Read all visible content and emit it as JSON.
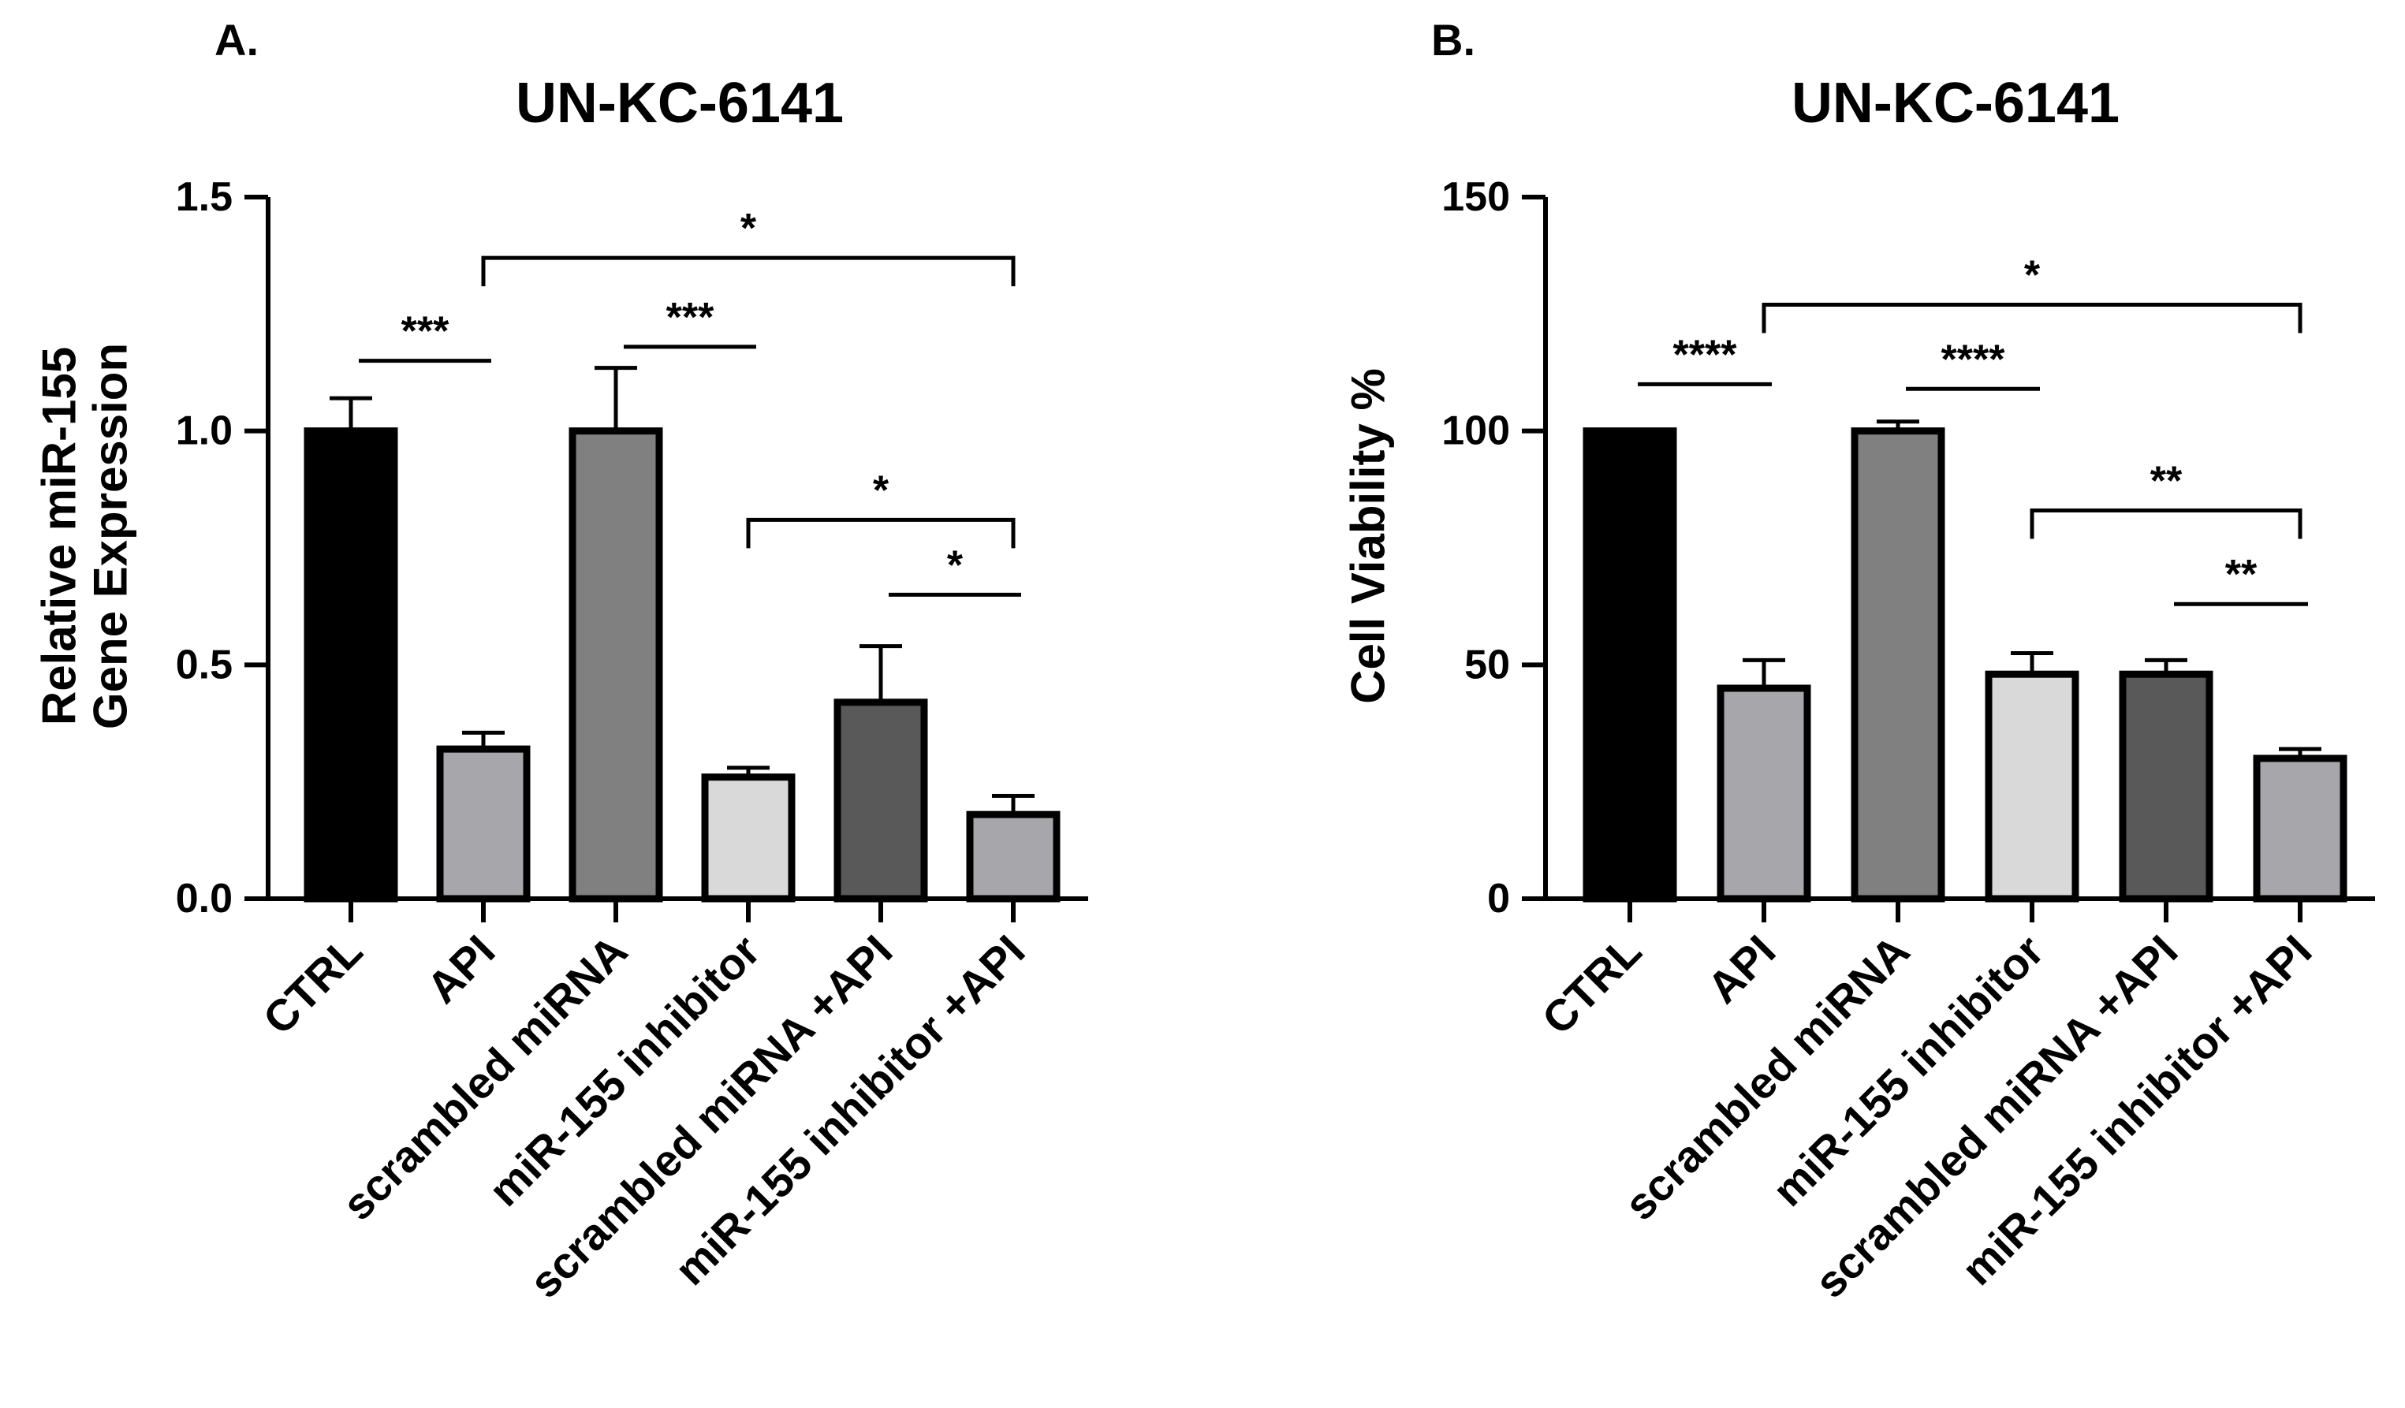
{
  "chart_data": [
    {
      "type": "bar",
      "panel": "A.",
      "title": "UN-KC-6141",
      "ylabel_lines": [
        "Relative miR-155",
        "Gene Expression"
      ],
      "ylim": [
        0,
        1.5
      ],
      "yticks": [
        0.0,
        0.5,
        1.0,
        1.5
      ],
      "ytick_labels": [
        "0.0",
        "0.5",
        "1.0",
        "1.5"
      ],
      "categories": [
        "CTRL",
        "API",
        "scrambled miRNA",
        "miR-155 inhibitor",
        "scrambled miRNA +API",
        "miR-155 inhibitor +API"
      ],
      "values": [
        1.0,
        0.32,
        1.0,
        0.26,
        0.42,
        0.18
      ],
      "errors": [
        0.07,
        0.035,
        0.135,
        0.02,
        0.12,
        0.04
      ],
      "bar_colors": [
        "#000000",
        "#a6a6ab",
        "#808080",
        "#d9d9d9",
        "#595959",
        "#a6a6ab"
      ],
      "significance": [
        {
          "from": 0,
          "to": 1,
          "y": 1.15,
          "label": "***",
          "style": "line"
        },
        {
          "from": 1,
          "to": 5,
          "y": 1.37,
          "label": "*",
          "style": "bracket"
        },
        {
          "from": 2,
          "to": 3,
          "y": 1.18,
          "label": "***",
          "style": "line"
        },
        {
          "from": 3,
          "to": 5,
          "y": 0.81,
          "label": "*",
          "style": "bracket"
        },
        {
          "from": 4,
          "to": 5,
          "y": 0.65,
          "label": "*",
          "style": "line"
        }
      ]
    },
    {
      "type": "bar",
      "panel": "B.",
      "title": "UN-KC-6141",
      "ylabel_lines": [
        "Cell Viability %"
      ],
      "ylim": [
        0,
        150
      ],
      "yticks": [
        0,
        50,
        100,
        150
      ],
      "ytick_labels": [
        "0",
        "50",
        "100",
        "150"
      ],
      "categories": [
        "CTRL",
        "API",
        "scrambled miRNA",
        "miR-155 inhibitor",
        "scrambled miRNA +API",
        "miR-155 inhibitor +API"
      ],
      "values": [
        100,
        45,
        100,
        48,
        48,
        30
      ],
      "errors": [
        0,
        6,
        2,
        4.5,
        3,
        2
      ],
      "bar_colors": [
        "#000000",
        "#a6a6ab",
        "#808080",
        "#d9d9d9",
        "#595959",
        "#a6a6ab"
      ],
      "significance": [
        {
          "from": 0,
          "to": 1,
          "y": 110,
          "label": "****",
          "style": "line"
        },
        {
          "from": 1,
          "to": 5,
          "y": 127,
          "label": "*",
          "style": "bracket"
        },
        {
          "from": 2,
          "to": 3,
          "y": 109,
          "label": "****",
          "style": "line"
        },
        {
          "from": 3,
          "to": 5,
          "y": 83,
          "label": "**",
          "style": "bracket"
        },
        {
          "from": 4,
          "to": 5,
          "y": 63,
          "label": "**",
          "style": "line"
        }
      ]
    }
  ]
}
